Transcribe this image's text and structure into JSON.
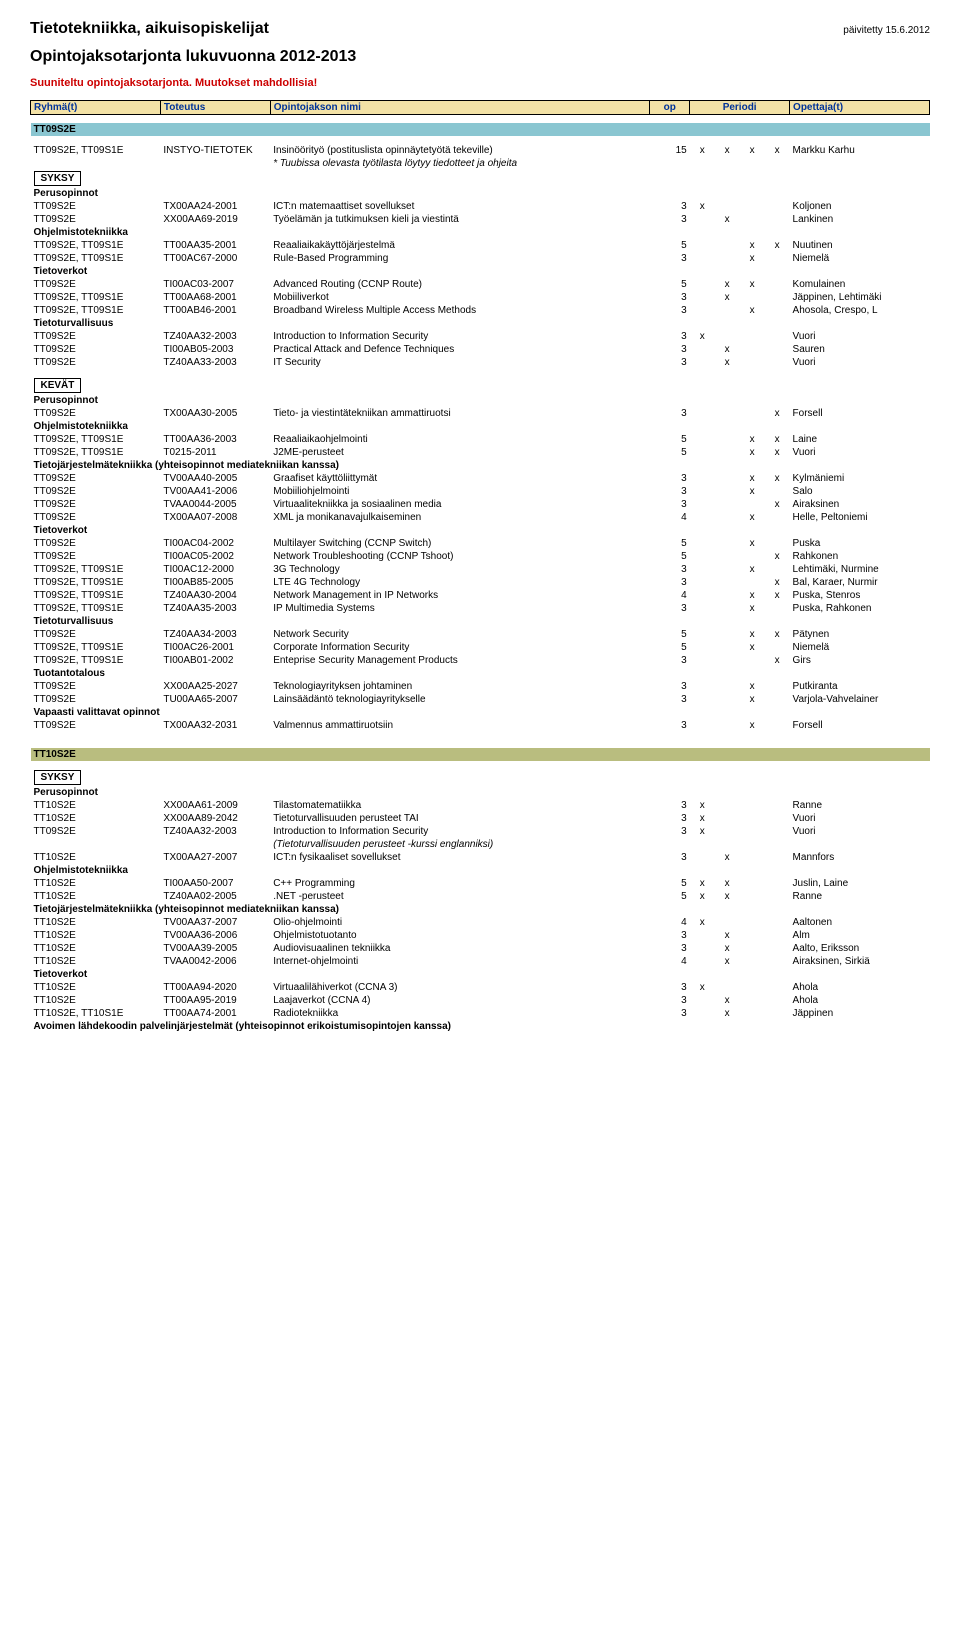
{
  "header": {
    "title": "Tietotekniikka, aikuisopiskelijat",
    "subtitle": "Opintojaksotarjonta lukuvuonna 2012-2013",
    "note": "Suuniteltu opintojaksotarjonta. Muutokset mahdollisia!",
    "updated": "päivitetty 15.6.2012"
  },
  "table_headers": {
    "ryhma": "Ryhmä(t)",
    "toteutus": "Toteutus",
    "nimi": "Opintojakson nimi",
    "op": "op",
    "periodi": "Periodi",
    "opettaja": "Opettaja(t)"
  },
  "groups": [
    {
      "code": "TT09S2E",
      "bar_class": "",
      "seasons": [
        {
          "label": "SYKSY",
          "intro": {
            "ryhma": "TT09S2E, TT09S1E",
            "toteutus": "INSTYO-TIETOTEK",
            "nimi": "Insinöörityö (postituslista opinnäytetyötä tekeville)",
            "op": "15",
            "periods": [
              "x",
              "x",
              "x",
              "x"
            ],
            "opettaja": "Markku Karhu",
            "note": "* Tuubissa olevasta työtilasta löytyy tiedotteet ja ohjeita"
          },
          "sections": [
            {
              "heading": "Perusopinnot",
              "rows": [
                {
                  "r": "TT09S2E",
                  "t": "TX00AA24-2001",
                  "n": "ICT:n matemaattiset sovellukset",
                  "op": "3",
                  "p": [
                    "x",
                    "",
                    "",
                    ""
                  ],
                  "o": "Koljonen"
                },
                {
                  "r": "TT09S2E",
                  "t": "XX00AA69-2019",
                  "n": "Työelämän ja tutkimuksen kieli ja viestintä",
                  "op": "3",
                  "p": [
                    "",
                    "x",
                    "",
                    ""
                  ],
                  "o": "Lankinen"
                }
              ]
            },
            {
              "heading": "Ohjelmistotekniikka",
              "rows": [
                {
                  "r": "TT09S2E, TT09S1E",
                  "t": "TT00AA35-2001",
                  "n": "Reaaliaikakäyttöjärjestelmä",
                  "op": "5",
                  "p": [
                    "",
                    "",
                    "x",
                    "x"
                  ],
                  "o": "Nuutinen"
                },
                {
                  "r": "TT09S2E, TT09S1E",
                  "t": "TT00AC67-2000",
                  "n": "Rule-Based Programming",
                  "op": "3",
                  "p": [
                    "",
                    "",
                    "x",
                    ""
                  ],
                  "o": "Niemelä"
                }
              ]
            },
            {
              "heading": "Tietoverkot",
              "rows": [
                {
                  "r": "TT09S2E",
                  "t": "TI00AC03-2007",
                  "n": "Advanced Routing (CCNP Route)",
                  "op": "5",
                  "p": [
                    "",
                    "x",
                    "x",
                    ""
                  ],
                  "o": "Komulainen"
                },
                {
                  "r": "TT09S2E, TT09S1E",
                  "t": "TT00AA68-2001",
                  "n": "Mobiiliverkot",
                  "op": "3",
                  "p": [
                    "",
                    "x",
                    "",
                    ""
                  ],
                  "o": "Jäppinen, Lehtimäki"
                },
                {
                  "r": "TT09S2E, TT09S1E",
                  "t": "TT00AB46-2001",
                  "n": "Broadband Wireless Multiple Access Methods",
                  "op": "3",
                  "p": [
                    "",
                    "",
                    "x",
                    ""
                  ],
                  "o": "Ahosola, Crespo, L"
                }
              ]
            },
            {
              "heading": "Tietoturvallisuus",
              "rows": [
                {
                  "r": "TT09S2E",
                  "t": "TZ40AA32-2003",
                  "n": "Introduction to Information Security",
                  "op": "3",
                  "p": [
                    "x",
                    "",
                    "",
                    ""
                  ],
                  "o": "Vuori"
                },
                {
                  "r": "TT09S2E",
                  "t": "TI00AB05-2003",
                  "n": "Practical Attack and Defence Techniques",
                  "op": "3",
                  "p": [
                    "",
                    "x",
                    "",
                    ""
                  ],
                  "o": "Sauren"
                },
                {
                  "r": "TT09S2E",
                  "t": "TZ40AA33-2003",
                  "n": "IT Security",
                  "op": "3",
                  "p": [
                    "",
                    "x",
                    "",
                    ""
                  ],
                  "o": "Vuori"
                }
              ]
            }
          ]
        },
        {
          "label": "KEVÄT",
          "sections": [
            {
              "heading": "Perusopinnot",
              "rows": [
                {
                  "r": "TT09S2E",
                  "t": "TX00AA30-2005",
                  "n": "Tieto- ja viestintätekniikan ammattiruotsi",
                  "op": "3",
                  "p": [
                    "",
                    "",
                    "",
                    "x"
                  ],
                  "o": "Forsell"
                }
              ]
            },
            {
              "heading": "Ohjelmistotekniikka",
              "rows": [
                {
                  "r": "TT09S2E, TT09S1E",
                  "t": "TT00AA36-2003",
                  "n": "Reaaliaikaohjelmointi",
                  "op": "5",
                  "p": [
                    "",
                    "",
                    "x",
                    "x"
                  ],
                  "o": "Laine"
                },
                {
                  "r": "TT09S2E, TT09S1E",
                  "t": "T0215-2011",
                  "n": "J2ME-perusteet",
                  "op": "5",
                  "p": [
                    "",
                    "",
                    "x",
                    "x"
                  ],
                  "o": "Vuori"
                }
              ]
            },
            {
              "heading": "Tietojärjestelmätekniikka (yhteisopinnot mediatekniikan kanssa)",
              "rows": [
                {
                  "r": "TT09S2E",
                  "t": "TV00AA40-2005",
                  "n": "Graafiset käyttöliittymät",
                  "op": "3",
                  "p": [
                    "",
                    "",
                    "x",
                    "x"
                  ],
                  "o": "Kylmäniemi"
                },
                {
                  "r": "TT09S2E",
                  "t": "TV00AA41-2006",
                  "n": "Mobiiliohjelmointi",
                  "op": "3",
                  "p": [
                    "",
                    "",
                    "x",
                    ""
                  ],
                  "o": "Salo"
                },
                {
                  "r": "TT09S2E",
                  "t": "TVAA0044-2005",
                  "n": "Virtuaalitekniikka ja sosiaalinen media",
                  "op": "3",
                  "p": [
                    "",
                    "",
                    "",
                    "x"
                  ],
                  "o": "Airaksinen"
                },
                {
                  "r": "TT09S2E",
                  "t": "TX00AA07-2008",
                  "n": "XML ja monikanavajulkaiseminen",
                  "op": "4",
                  "p": [
                    "",
                    "",
                    "x",
                    ""
                  ],
                  "o": "Helle, Peltoniemi"
                }
              ]
            },
            {
              "heading": "Tietoverkot",
              "rows": [
                {
                  "r": "TT09S2E",
                  "t": "TI00AC04-2002",
                  "n": "Multilayer Switching (CCNP Switch)",
                  "op": "5",
                  "p": [
                    "",
                    "",
                    "x",
                    ""
                  ],
                  "o": "Puska"
                },
                {
                  "r": "TT09S2E",
                  "t": "TI00AC05-2002",
                  "n": "Network Troubleshooting (CCNP Tshoot)",
                  "op": "5",
                  "p": [
                    "",
                    "",
                    "",
                    "x"
                  ],
                  "o": "Rahkonen"
                },
                {
                  "r": "TT09S2E, TT09S1E",
                  "t": "TI00AC12-2000",
                  "n": "3G Technology",
                  "op": "3",
                  "p": [
                    "",
                    "",
                    "x",
                    ""
                  ],
                  "o": "Lehtimäki, Nurmine"
                },
                {
                  "r": "TT09S2E, TT09S1E",
                  "t": "TI00AB85-2005",
                  "n": "LTE 4G Technology",
                  "op": "3",
                  "p": [
                    "",
                    "",
                    "",
                    "x"
                  ],
                  "o": "Bal, Karaer, Nurmir"
                },
                {
                  "r": "TT09S2E, TT09S1E",
                  "t": "TZ40AA30-2004",
                  "n": "Network Management in IP Networks",
                  "op": "4",
                  "p": [
                    "",
                    "",
                    "x",
                    "x"
                  ],
                  "o": "Puska, Stenros"
                },
                {
                  "r": "TT09S2E, TT09S1E",
                  "t": "TZ40AA35-2003",
                  "n": "IP Multimedia Systems",
                  "op": "3",
                  "p": [
                    "",
                    "",
                    "x",
                    ""
                  ],
                  "o": "Puska, Rahkonen"
                }
              ]
            },
            {
              "heading": "Tietoturvallisuus",
              "rows": [
                {
                  "r": "TT09S2E",
                  "t": "TZ40AA34-2003",
                  "n": "Network Security",
                  "op": "5",
                  "p": [
                    "",
                    "",
                    "x",
                    "x"
                  ],
                  "o": "Pätynen"
                },
                {
                  "r": "TT09S2E, TT09S1E",
                  "t": "TI00AC26-2001",
                  "n": "Corporate Information Security",
                  "op": "5",
                  "p": [
                    "",
                    "",
                    "x",
                    ""
                  ],
                  "o": "Niemelä"
                },
                {
                  "r": "TT09S2E, TT09S1E",
                  "t": "TI00AB01-2002",
                  "n": "Enteprise Security Management Products",
                  "op": "3",
                  "p": [
                    "",
                    "",
                    "",
                    "x"
                  ],
                  "o": "Girs"
                }
              ]
            },
            {
              "heading": "Tuotantotalous",
              "rows": [
                {
                  "r": "TT09S2E",
                  "t": "XX00AA25-2027",
                  "n": "Teknologiayrityksen johtaminen",
                  "op": "3",
                  "p": [
                    "",
                    "",
                    "x",
                    ""
                  ],
                  "o": "Putkiranta"
                },
                {
                  "r": "TT09S2E",
                  "t": "TU00AA65-2007",
                  "n": "Lainsäädäntö teknologiayritykselle",
                  "op": "3",
                  "p": [
                    "",
                    "",
                    "x",
                    ""
                  ],
                  "o": "Varjola-Vahvelainer"
                }
              ]
            },
            {
              "heading": "Vapaasti valittavat opinnot",
              "rows": [
                {
                  "r": "TT09S2E",
                  "t": "TX00AA32-2031",
                  "n": "Valmennus ammattiruotsiin",
                  "op": "3",
                  "p": [
                    "",
                    "",
                    "x",
                    ""
                  ],
                  "o": "Forsell"
                }
              ]
            }
          ]
        }
      ]
    },
    {
      "code": "TT10S2E",
      "bar_class": "olive",
      "seasons": [
        {
          "label": "SYKSY",
          "sections": [
            {
              "heading": "Perusopinnot",
              "rows": [
                {
                  "r": "TT10S2E",
                  "t": "XX00AA61-2009",
                  "n": "Tilastomatematiikka",
                  "op": "3",
                  "p": [
                    "x",
                    "",
                    "",
                    ""
                  ],
                  "o": "Ranne"
                },
                {
                  "r": "TT10S2E",
                  "t": "XX00AA89-2042",
                  "n": "Tietoturvallisuuden perusteet TAI",
                  "op": "3",
                  "p": [
                    "x",
                    "",
                    "",
                    ""
                  ],
                  "o": "Vuori"
                },
                {
                  "r": "TT09S2E",
                  "t": "TZ40AA32-2003",
                  "n": "Introduction to Information Security",
                  "op": "3",
                  "p": [
                    "x",
                    "",
                    "",
                    ""
                  ],
                  "o": "Vuori"
                },
                {
                  "note_row": "(Tietoturvallisuuden perusteet -kurssi englanniksi)"
                },
                {
                  "r": "TT10S2E",
                  "t": "TX00AA27-2007",
                  "n": "ICT:n fysikaaliset sovellukset",
                  "op": "3",
                  "p": [
                    "",
                    "x",
                    "",
                    ""
                  ],
                  "o": "Mannfors"
                }
              ]
            },
            {
              "heading": "Ohjelmistotekniikka",
              "rows": [
                {
                  "r": "TT10S2E",
                  "t": "TI00AA50-2007",
                  "n": "C++ Programming",
                  "op": "5",
                  "p": [
                    "x",
                    "x",
                    "",
                    ""
                  ],
                  "o": "Juslin, Laine"
                },
                {
                  "r": "TT10S2E",
                  "t": "TZ40AA02-2005",
                  "n": ".NET -perusteet",
                  "op": "5",
                  "p": [
                    "x",
                    "x",
                    "",
                    ""
                  ],
                  "o": "Ranne"
                }
              ]
            },
            {
              "heading": "Tietojärjestelmätekniikka (yhteisopinnot mediatekniikan kanssa)",
              "rows": [
                {
                  "r": "TT10S2E",
                  "t": "TV00AA37-2007",
                  "n": "Olio-ohjelmointi",
                  "op": "4",
                  "p": [
                    "x",
                    "",
                    "",
                    ""
                  ],
                  "o": "Aaltonen"
                },
                {
                  "r": "TT10S2E",
                  "t": "TV00AA36-2006",
                  "n": "Ohjelmistotuotanto",
                  "op": "3",
                  "p": [
                    "",
                    "x",
                    "",
                    ""
                  ],
                  "o": "Alm"
                },
                {
                  "r": "TT10S2E",
                  "t": "TV00AA39-2005",
                  "n": "Audiovisuaalinen tekniikka",
                  "op": "3",
                  "p": [
                    "",
                    "x",
                    "",
                    ""
                  ],
                  "o": "Aalto, Eriksson"
                },
                {
                  "r": "TT10S2E",
                  "t": "TVAA0042-2006",
                  "n": "Internet-ohjelmointi",
                  "op": "4",
                  "p": [
                    "",
                    "x",
                    "",
                    ""
                  ],
                  "o": "Airaksinen, Sirkiä"
                }
              ]
            },
            {
              "heading": "Tietoverkot",
              "rows": [
                {
                  "r": "TT10S2E",
                  "t": "TT00AA94-2020",
                  "n": "Virtuaalilähiverkot (CCNA 3)",
                  "op": "3",
                  "p": [
                    "x",
                    "",
                    "",
                    ""
                  ],
                  "o": "Ahola"
                },
                {
                  "r": "TT10S2E",
                  "t": "TT00AA95-2019",
                  "n": "Laajaverkot (CCNA 4)",
                  "op": "3",
                  "p": [
                    "",
                    "x",
                    "",
                    ""
                  ],
                  "o": "Ahola"
                },
                {
                  "r": "TT10S2E, TT10S1E",
                  "t": "TT00AA74-2001",
                  "n": "Radiotekniikka",
                  "op": "3",
                  "p": [
                    "",
                    "x",
                    "",
                    ""
                  ],
                  "o": "Jäppinen"
                }
              ]
            },
            {
              "heading": "Avoimen lähdekoodin palvelinjärjestelmät (yhteisopinnot erikoistumisopintojen kanssa)",
              "rows": []
            }
          ]
        }
      ]
    }
  ]
}
